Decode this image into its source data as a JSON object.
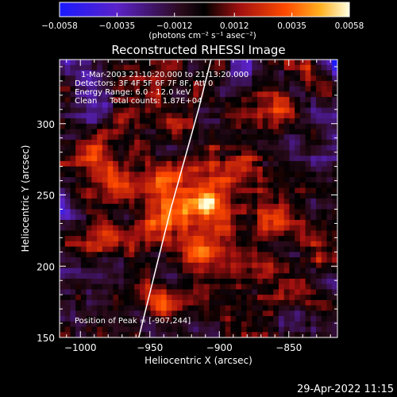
{
  "chart_data": {
    "type": "heatmap",
    "title": "Reconstructed RHESSI Image",
    "xlabel": "Heliocentric X (arcsec)",
    "ylabel": "Heliocentric Y (arcsec)",
    "xlim": [
      -1015,
      -815
    ],
    "ylim": [
      150,
      345
    ],
    "xticks": [
      -1000,
      -950,
      -900,
      -850
    ],
    "xtick_labels": [
      "−1000",
      "−950",
      "−900",
      "−850"
    ],
    "yticks": [
      150,
      200,
      250,
      300
    ],
    "ytick_labels": [
      "150",
      "200",
      "250",
      "300"
    ],
    "colorbar": {
      "range": [
        -0.0058,
        0.0058
      ],
      "ticks": [
        -0.0058,
        -0.0035,
        -0.0012,
        0.0012,
        0.0035,
        0.0058
      ],
      "tick_labels": [
        "−0.0058",
        "−0.0035",
        "−0.0012",
        "0.0012",
        "0.0035",
        "0.0058"
      ],
      "unit_label": "(photons cm⁻² s⁻¹ asec⁻²)"
    },
    "annotations": [
      "1-Mar-2003 21:10:20.000 to 21:13:20.000",
      "Detectors: 3F 4F 5F 6F 7F 8F, Att 0",
      "Energy Range: 6.0 - 12.0 keV",
      "Clean     Total counts: 1.87E+04"
    ],
    "peak_label": "Position of Peak = [-907,244]",
    "peak": [
      -907,
      244
    ],
    "limb_line": [
      [
        -958,
        150
      ],
      [
        -935,
        240
      ],
      [
        -915,
        310
      ],
      [
        -906,
        345
      ]
    ]
  },
  "timestamp": "29-Apr-2022 11:15"
}
